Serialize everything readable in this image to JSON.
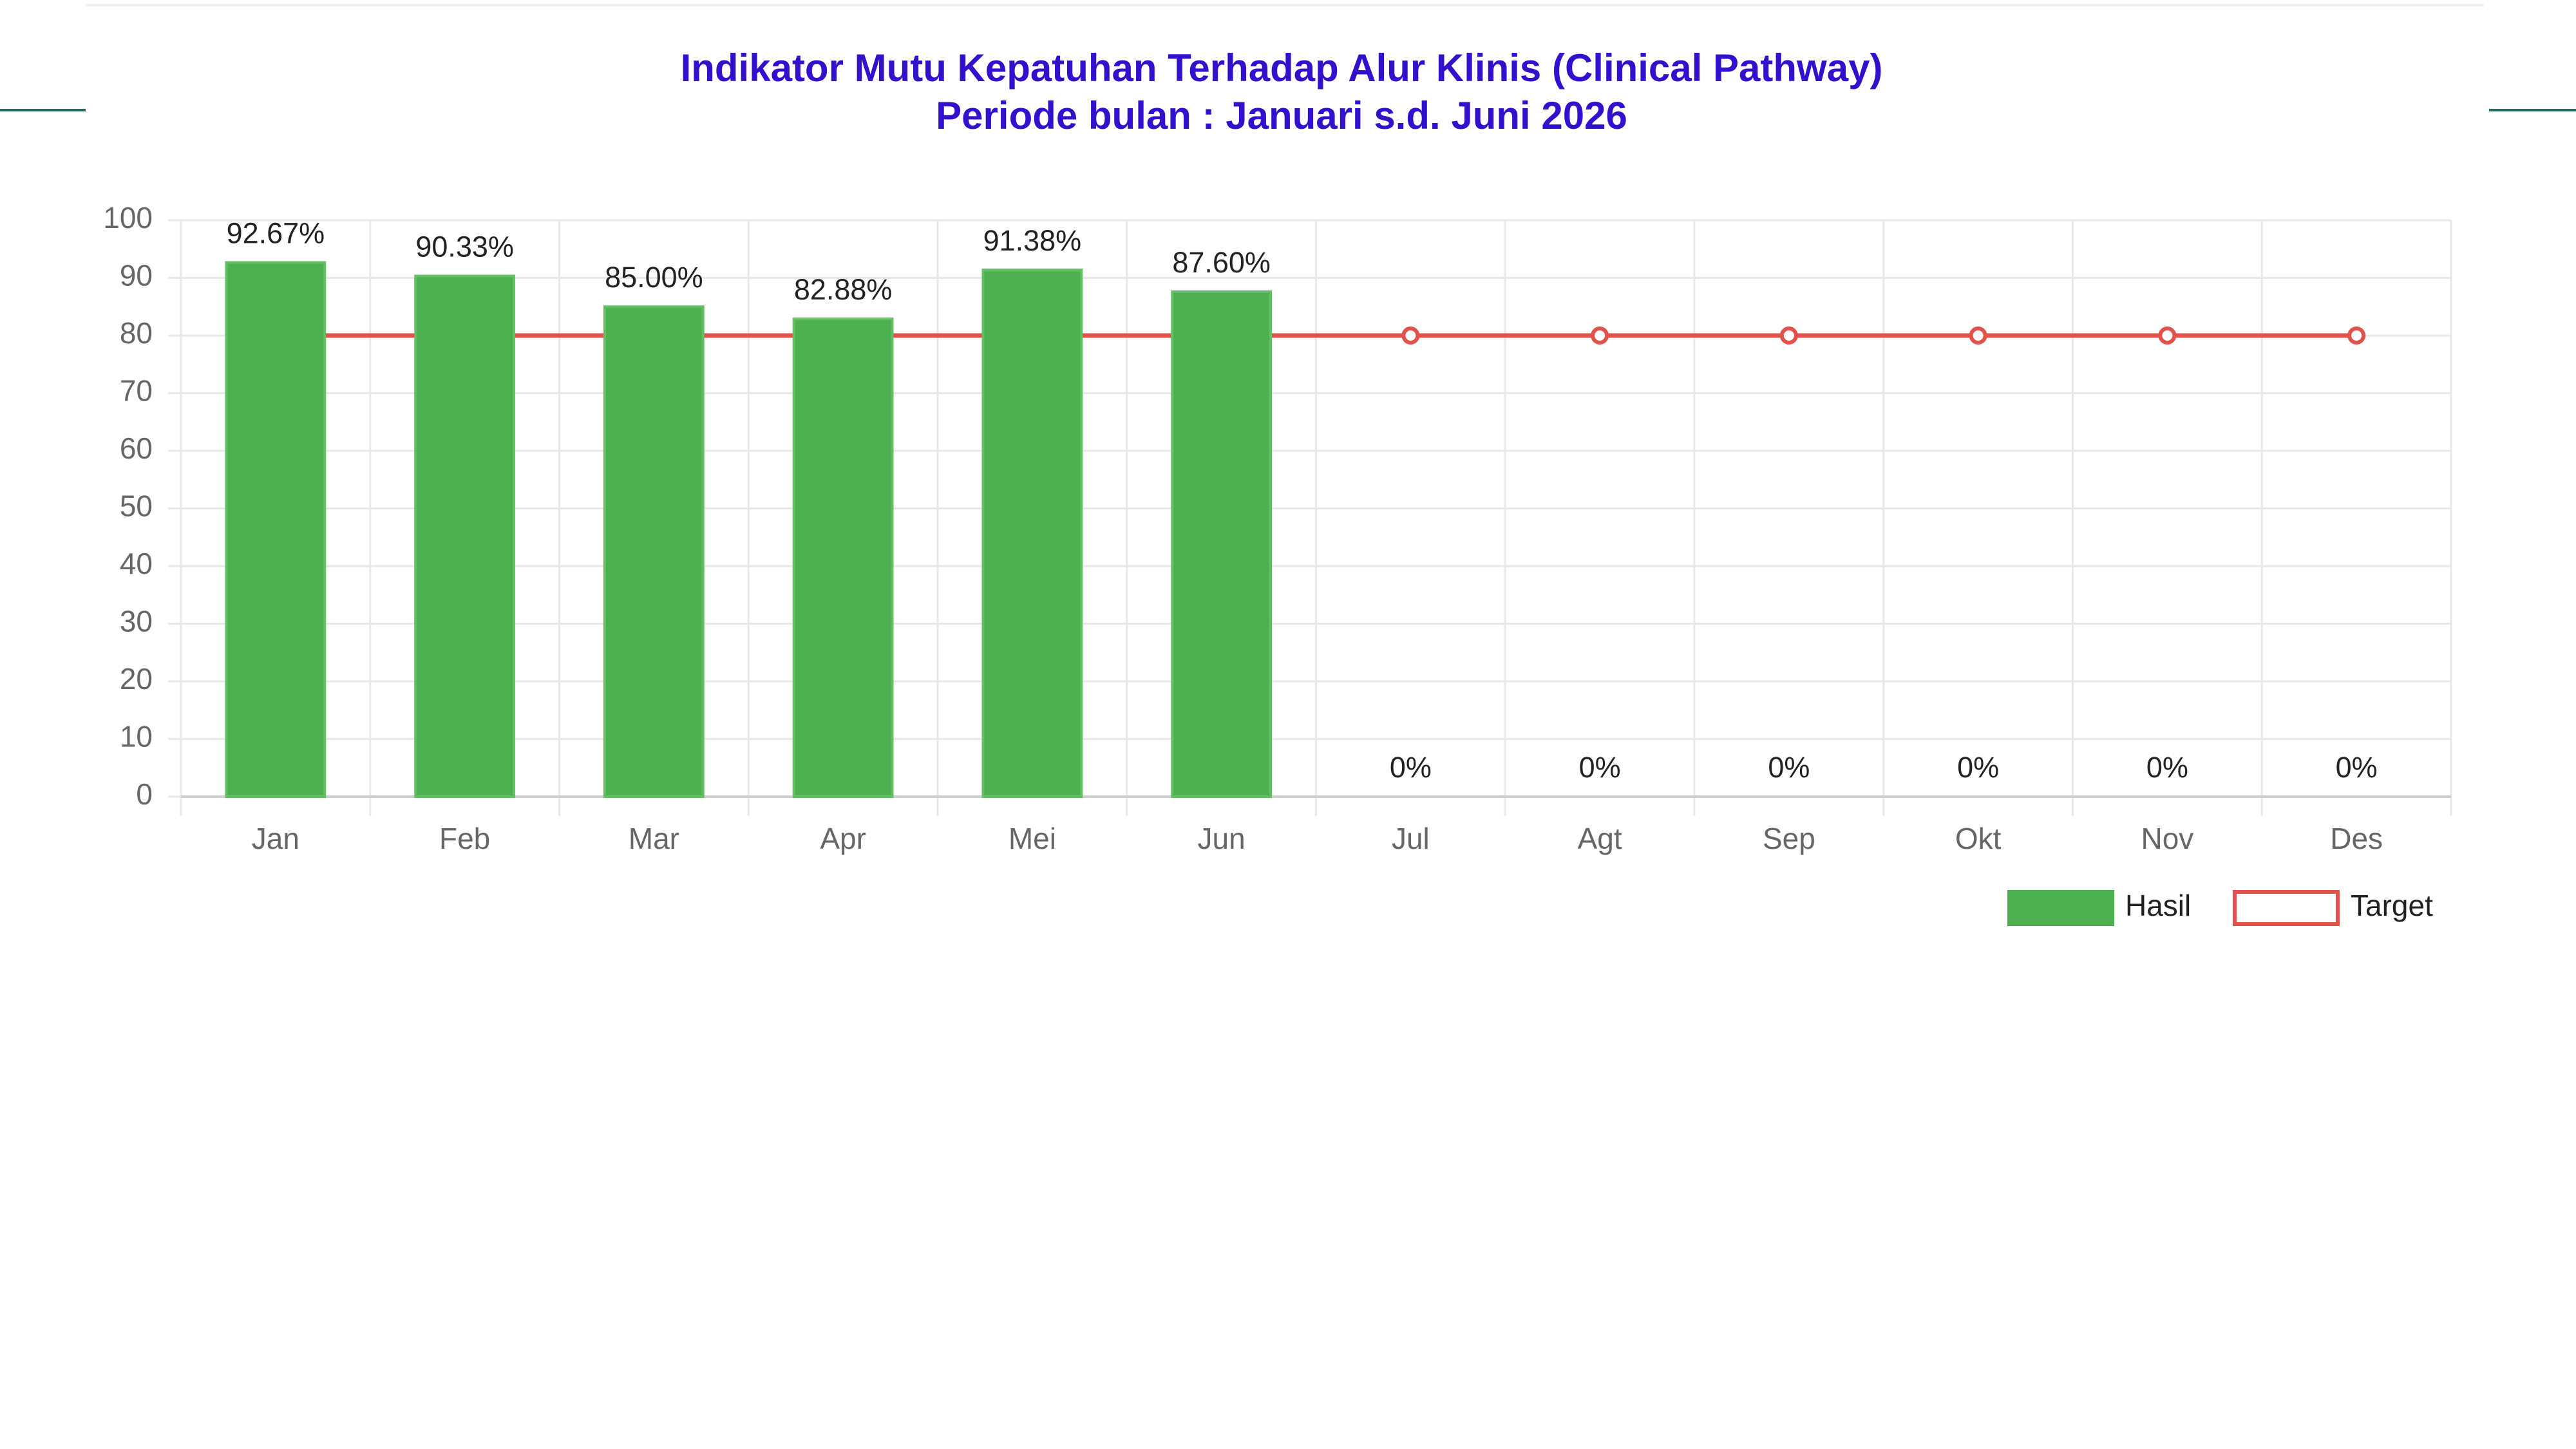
{
  "chart_data": {
    "type": "bar",
    "title": "Indikator Mutu Kepatuhan Terhadap Alur Klinis (Clinical Pathway)",
    "subtitle": "Periode bulan : Januari s.d. Juni 2026",
    "categories": [
      "Jan",
      "Feb",
      "Mar",
      "Apr",
      "Mei",
      "Jun",
      "Jul",
      "Agt",
      "Sep",
      "Okt",
      "Nov",
      "Des"
    ],
    "series": [
      {
        "name": "Hasil",
        "type": "bar",
        "color": "#4caf50",
        "values": [
          92.67,
          90.33,
          85.0,
          82.88,
          91.38,
          87.6,
          0,
          0,
          0,
          0,
          0,
          0
        ],
        "value_labels": [
          "92.67%",
          "90.33%",
          "85.00%",
          "82.88%",
          "91.38%",
          "87.60%",
          "0%",
          "0%",
          "0%",
          "0%",
          "0%",
          "0%"
        ]
      },
      {
        "name": "Target",
        "type": "line",
        "color": "#e0524a",
        "values": [
          80,
          80,
          80,
          80,
          80,
          80,
          80,
          80,
          80,
          80,
          80,
          80
        ]
      }
    ],
    "ylim": [
      0,
      100
    ],
    "yticks": [
      0,
      10,
      20,
      30,
      40,
      50,
      60,
      70,
      80,
      90,
      100
    ],
    "grid": true,
    "legend": "bottom-right"
  }
}
